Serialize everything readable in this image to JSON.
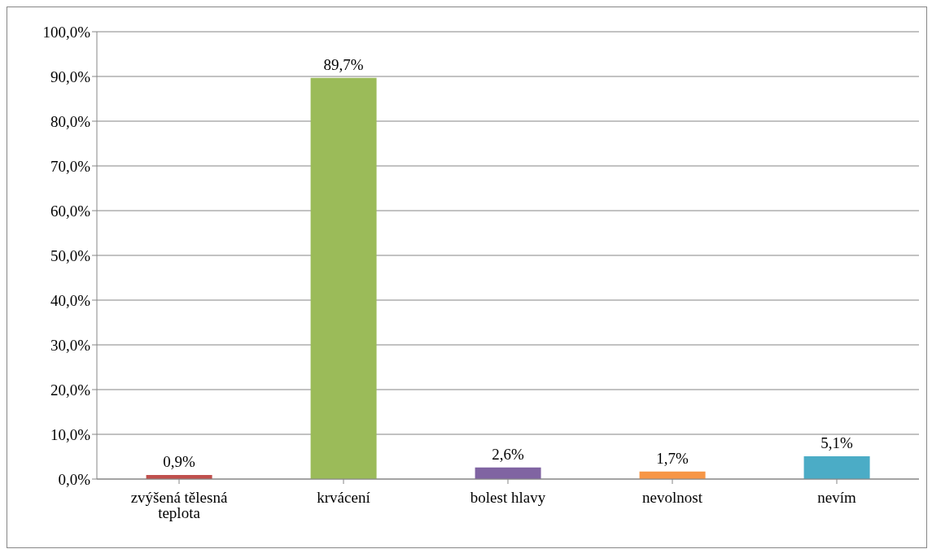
{
  "chart_data": {
    "type": "bar",
    "categories": [
      "zvýšená tělesná teplota",
      "krvácení",
      "bolest hlavy",
      "nevolnost",
      "nevím"
    ],
    "values": [
      0.9,
      89.7,
      2.6,
      1.7,
      5.1
    ],
    "colors": [
      "#c0504d",
      "#9bbb59",
      "#8064a2",
      "#f79646",
      "#4bacc6"
    ],
    "value_labels": [
      "0,9%",
      "89,7%",
      "2,6%",
      "1,7%",
      "5,1%"
    ],
    "ylim": [
      0,
      100
    ],
    "yticks": [
      {
        "value": 0,
        "label": "0,0%"
      },
      {
        "value": 10,
        "label": "10,0%"
      },
      {
        "value": 20,
        "label": "20,0%"
      },
      {
        "value": 30,
        "label": "30,0%"
      },
      {
        "value": 40,
        "label": "40,0%"
      },
      {
        "value": 50,
        "label": "50,0%"
      },
      {
        "value": 60,
        "label": "60,0%"
      },
      {
        "value": 70,
        "label": "70,0%"
      },
      {
        "value": 80,
        "label": "80,0%"
      },
      {
        "value": 90,
        "label": "90,0%"
      },
      {
        "value": 100,
        "label": "100,0%"
      }
    ],
    "grid": "y"
  }
}
